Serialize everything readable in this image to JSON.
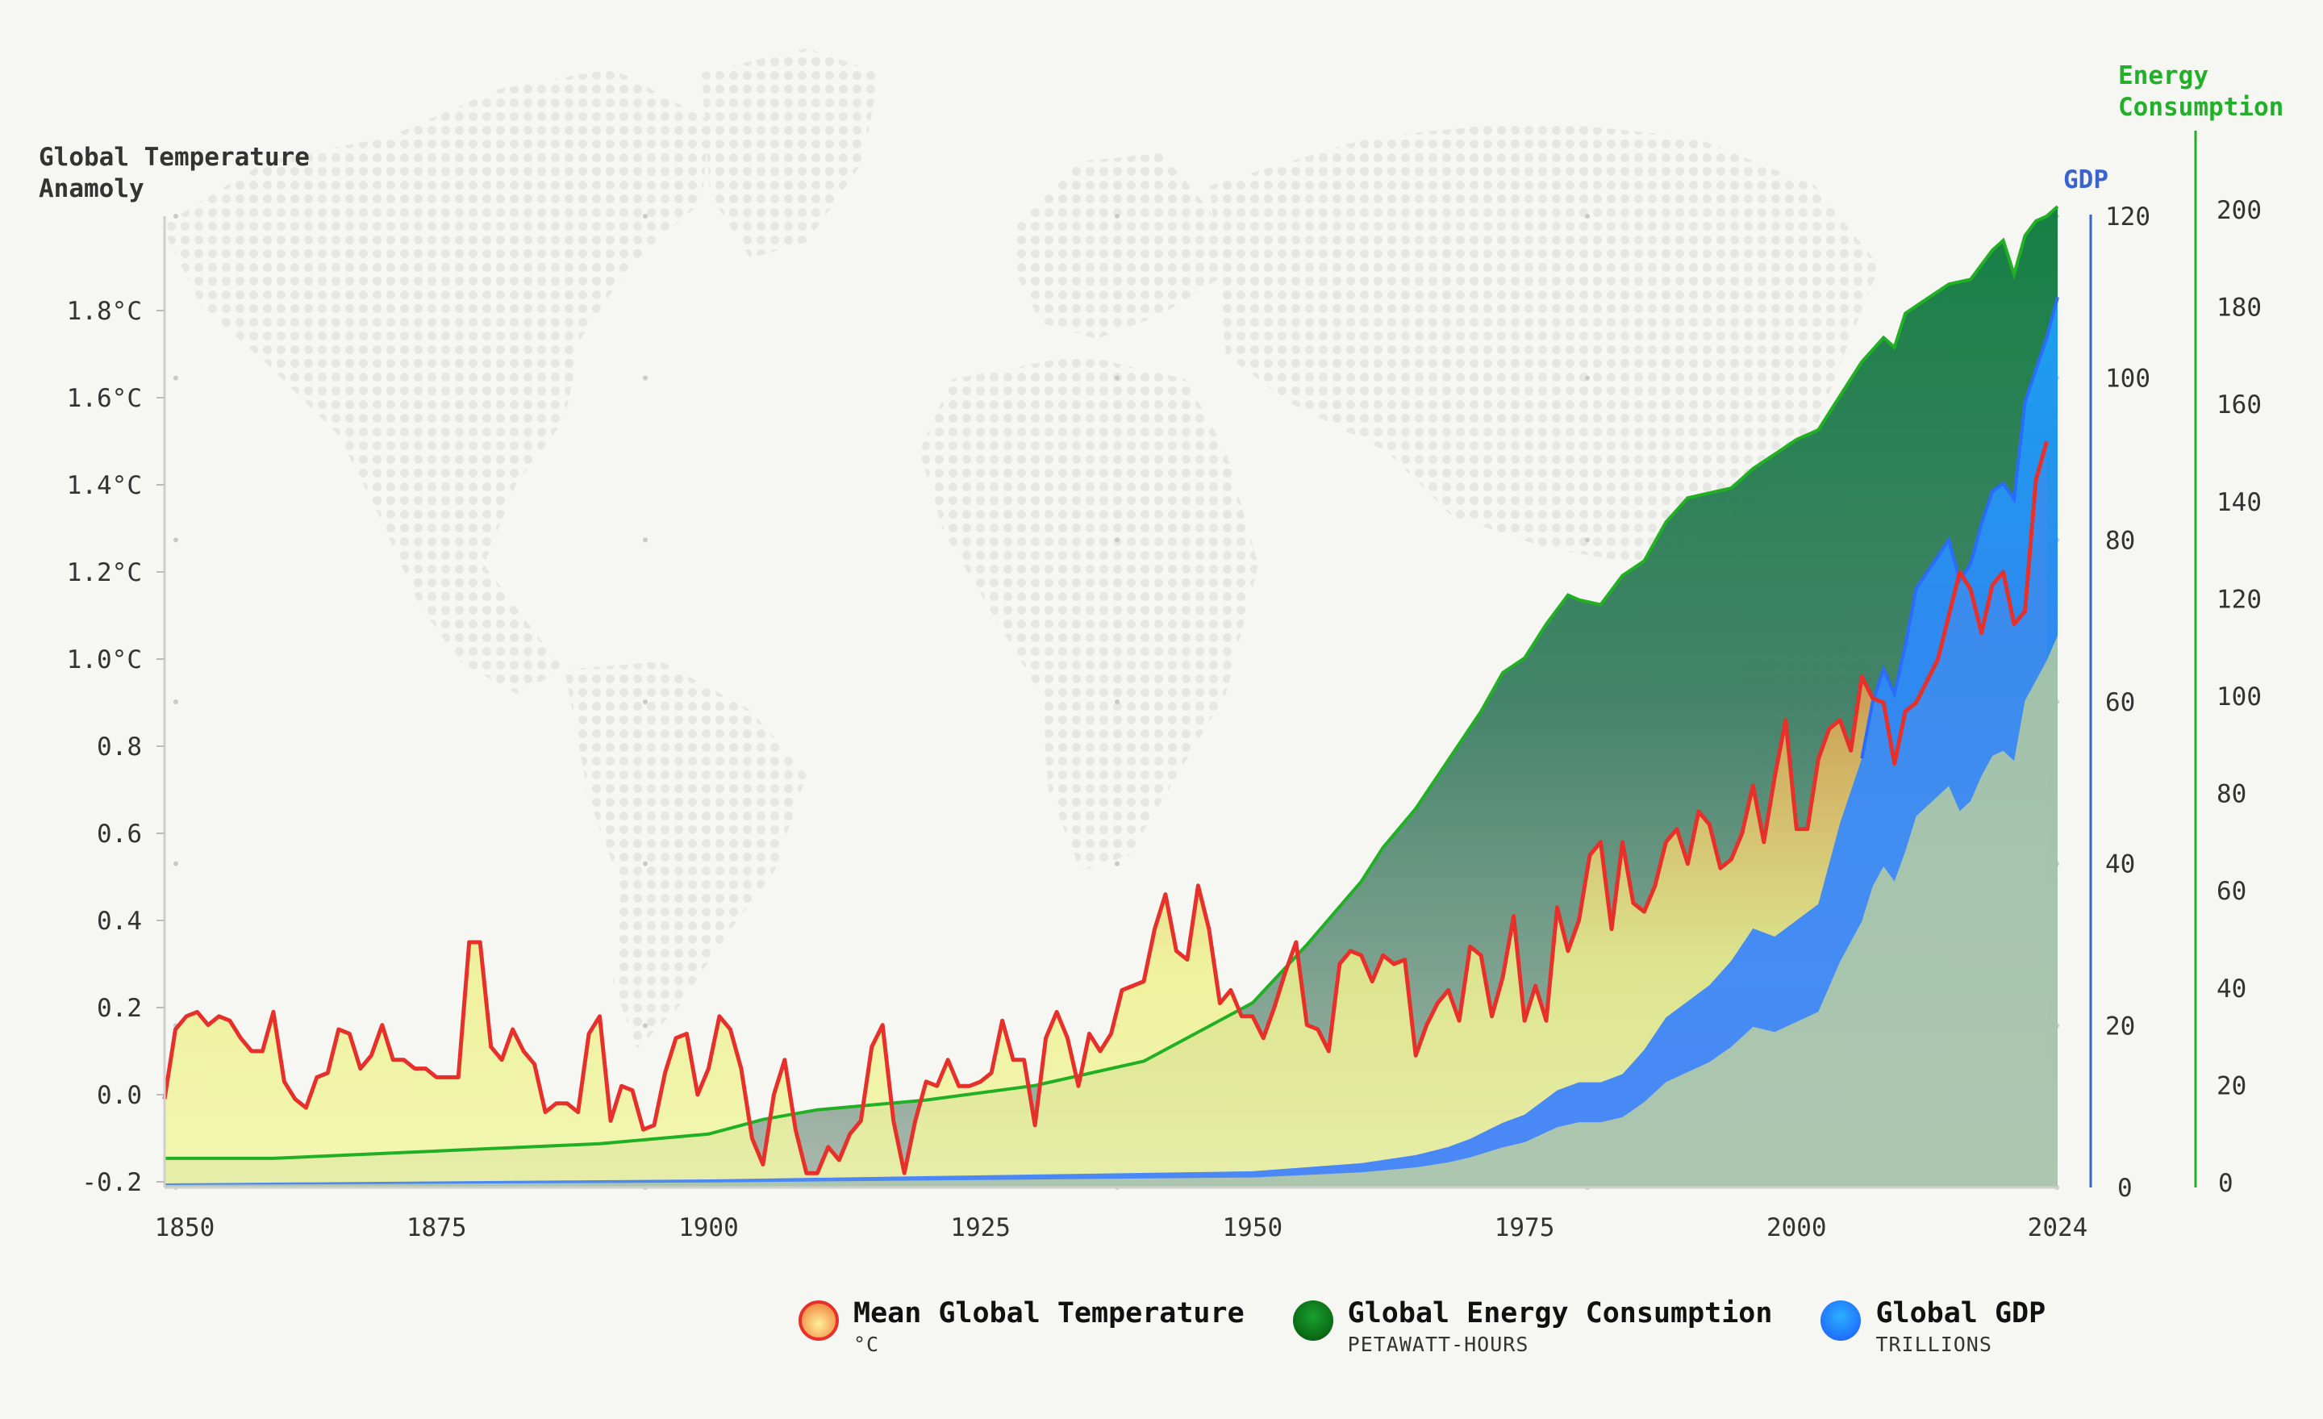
{
  "chart_data": {
    "type": "line+area",
    "x_range": [
      1850,
      2024
    ],
    "x_ticks": [
      "1850",
      "1875",
      "1900",
      "1925",
      "1950",
      "1975",
      "2000",
      "2024"
    ],
    "left_axis": {
      "title_line1": "Global Temperature",
      "title_line2": "Anamoly",
      "range": [
        -0.2,
        1.9
      ],
      "ticks": [
        {
          "value": -0.2,
          "label": "-0.2"
        },
        {
          "value": 0.0,
          "label": "0.0"
        },
        {
          "value": 0.2,
          "label": "0.2"
        },
        {
          "value": 0.4,
          "label": "0.4"
        },
        {
          "value": 0.6,
          "label": "0.6"
        },
        {
          "value": 0.8,
          "label": "0.8"
        },
        {
          "value": 1.0,
          "label": "1.0°C"
        },
        {
          "value": 1.2,
          "label": "1.2°C"
        },
        {
          "value": 1.4,
          "label": "1.4°C"
        },
        {
          "value": 1.6,
          "label": "1.6°C"
        },
        {
          "value": 1.8,
          "label": "1.8°C"
        }
      ]
    },
    "gdp_axis": {
      "title": "GDP",
      "range": [
        0,
        120
      ],
      "ticks": [
        "0",
        "20",
        "40",
        "60",
        "80",
        "100",
        "120"
      ],
      "color": "#3a63d0"
    },
    "energy_axis": {
      "title_line1": "Energy",
      "title_line2": "Consumption",
      "range": [
        0,
        200
      ],
      "ticks": [
        "0",
        "20",
        "40",
        "60",
        "80",
        "100",
        "120",
        "140",
        "160",
        "180",
        "200"
      ],
      "color": "#22b02a"
    },
    "series": [
      {
        "name": "Mean Global Temperature",
        "unit": "°C",
        "axis": "left",
        "color": "#e8302b",
        "x_start": 1850,
        "x_end": 2024,
        "values": [
          -0.01,
          0.15,
          0.18,
          0.19,
          0.16,
          0.18,
          0.17,
          0.13,
          0.1,
          0.1,
          0.19,
          0.03,
          -0.01,
          -0.03,
          0.04,
          0.05,
          0.15,
          0.14,
          0.06,
          0.09,
          0.16,
          0.08,
          0.08,
          0.06,
          0.06,
          0.04,
          0.04,
          0.04,
          0.35,
          0.35,
          0.11,
          0.08,
          0.15,
          0.1,
          0.07,
          -0.04,
          -0.02,
          -0.02,
          -0.04,
          0.14,
          0.18,
          -0.06,
          0.02,
          0.01,
          -0.08,
          -0.07,
          0.05,
          0.13,
          0.14,
          0.0,
          0.06,
          0.18,
          0.15,
          0.06,
          -0.1,
          -0.16,
          0.0,
          0.08,
          -0.08,
          -0.18,
          -0.18,
          -0.12,
          -0.15,
          -0.09,
          -0.06,
          0.11,
          0.16,
          -0.06,
          -0.18,
          -0.06,
          0.03,
          0.02,
          0.08,
          0.02,
          0.02,
          0.03,
          0.05,
          0.17,
          0.08,
          0.08,
          -0.07,
          0.13,
          0.19,
          0.13,
          0.02,
          0.14,
          0.1,
          0.14,
          0.24,
          0.25,
          0.26,
          0.38,
          0.46,
          0.33,
          0.31,
          0.48,
          0.38,
          0.21,
          0.24,
          0.18,
          0.18,
          0.13,
          0.2,
          0.28,
          0.35,
          0.16,
          0.15,
          0.1,
          0.3,
          0.33,
          0.32,
          0.26,
          0.32,
          0.3,
          0.31,
          0.09,
          0.16,
          0.21,
          0.24,
          0.17,
          0.34,
          0.32,
          0.18,
          0.27,
          0.41,
          0.17,
          0.25,
          0.17,
          0.43,
          0.33,
          0.4,
          0.55,
          0.58,
          0.38,
          0.58,
          0.44,
          0.42,
          0.48,
          0.58,
          0.61,
          0.53,
          0.65,
          0.62,
          0.52,
          0.54,
          0.6,
          0.71,
          0.58,
          0.73,
          0.86,
          0.61,
          0.61,
          0.77,
          0.84,
          0.86,
          0.79,
          0.96,
          0.91,
          0.9,
          0.76,
          0.88,
          0.9,
          0.95,
          1.0,
          1.1,
          1.2,
          1.16,
          1.06,
          1.17,
          1.2,
          1.08,
          1.11,
          1.41,
          1.5
        ]
      },
      {
        "name": "Global Energy Consumption",
        "unit": "PETAWATT-HOURS",
        "axis": "energy",
        "color": "#1f7a3a",
        "points": [
          [
            1850,
            6
          ],
          [
            1860,
            6
          ],
          [
            1870,
            7
          ],
          [
            1880,
            8
          ],
          [
            1890,
            9
          ],
          [
            1900,
            11
          ],
          [
            1905,
            14
          ],
          [
            1910,
            16
          ],
          [
            1920,
            18
          ],
          [
            1930,
            21
          ],
          [
            1940,
            26
          ],
          [
            1945,
            32
          ],
          [
            1950,
            38
          ],
          [
            1955,
            50
          ],
          [
            1960,
            63
          ],
          [
            1962,
            70
          ],
          [
            1965,
            78
          ],
          [
            1968,
            88
          ],
          [
            1971,
            98
          ],
          [
            1973,
            106
          ],
          [
            1975,
            109
          ],
          [
            1977,
            116
          ],
          [
            1979,
            122
          ],
          [
            1980,
            121
          ],
          [
            1982,
            120
          ],
          [
            1984,
            126
          ],
          [
            1986,
            129
          ],
          [
            1988,
            137
          ],
          [
            1990,
            142
          ],
          [
            1992,
            143
          ],
          [
            1994,
            144
          ],
          [
            1996,
            148
          ],
          [
            1998,
            151
          ],
          [
            2000,
            154
          ],
          [
            2002,
            156
          ],
          [
            2004,
            163
          ],
          [
            2006,
            170
          ],
          [
            2008,
            175
          ],
          [
            2009,
            173
          ],
          [
            2010,
            180
          ],
          [
            2012,
            183
          ],
          [
            2014,
            186
          ],
          [
            2016,
            187
          ],
          [
            2018,
            193
          ],
          [
            2019,
            195
          ],
          [
            2020,
            188
          ],
          [
            2021,
            196
          ],
          [
            2022,
            199
          ],
          [
            2023,
            200
          ],
          [
            2024,
            202
          ]
        ]
      },
      {
        "name": "Global GDP",
        "unit": "TRILLIONS",
        "axis": "gdp",
        "color": "#2f8cff",
        "points": [
          [
            1850,
            0.5
          ],
          [
            1900,
            1
          ],
          [
            1950,
            2
          ],
          [
            1960,
            3
          ],
          [
            1965,
            4
          ],
          [
            1968,
            5
          ],
          [
            1970,
            6
          ],
          [
            1973,
            8
          ],
          [
            1975,
            9
          ],
          [
            1978,
            12
          ],
          [
            1980,
            13
          ],
          [
            1982,
            13
          ],
          [
            1984,
            14
          ],
          [
            1986,
            17
          ],
          [
            1988,
            21
          ],
          [
            1990,
            23
          ],
          [
            1992,
            25
          ],
          [
            1994,
            28
          ],
          [
            1996,
            32
          ],
          [
            1998,
            31
          ],
          [
            2000,
            33
          ],
          [
            2002,
            35
          ],
          [
            2004,
            45
          ],
          [
            2006,
            53
          ],
          [
            2007,
            60
          ],
          [
            2008,
            64
          ],
          [
            2009,
            61
          ],
          [
            2010,
            67
          ],
          [
            2011,
            74
          ],
          [
            2012,
            76
          ],
          [
            2013,
            78
          ],
          [
            2014,
            80
          ],
          [
            2015,
            75
          ],
          [
            2016,
            77
          ],
          [
            2017,
            82
          ],
          [
            2018,
            86
          ],
          [
            2019,
            87
          ],
          [
            2020,
            85
          ],
          [
            2021,
            97
          ],
          [
            2022,
            101
          ],
          [
            2023,
            105
          ],
          [
            2024,
            110
          ]
        ]
      }
    ]
  },
  "legend": [
    {
      "title": "Mean Global Temperature",
      "unit": "°C",
      "color": "#e8302b"
    },
    {
      "title": "Global Energy Consumption",
      "unit": "PETAWATT-HOURS",
      "color": "#107018"
    },
    {
      "title": "Global GDP",
      "unit": "TRILLIONS",
      "color": "#1e78ff"
    }
  ]
}
